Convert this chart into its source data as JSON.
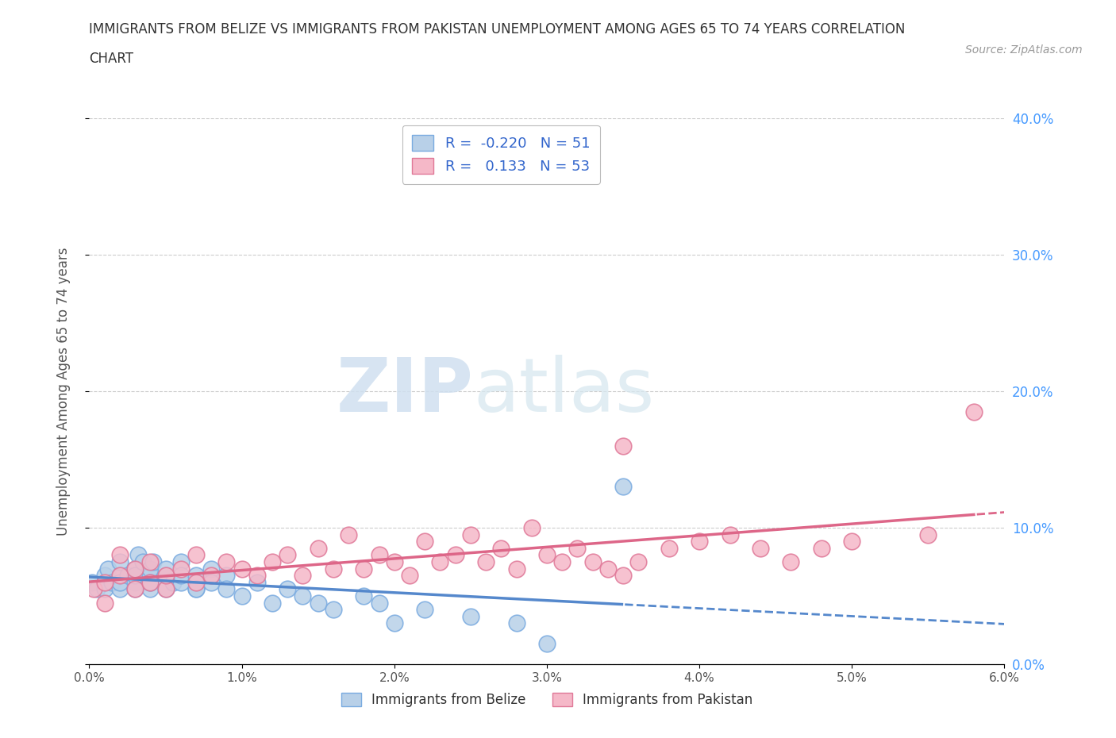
{
  "title_line1": "IMMIGRANTS FROM BELIZE VS IMMIGRANTS FROM PAKISTAN UNEMPLOYMENT AMONG AGES 65 TO 74 YEARS CORRELATION",
  "title_line2": "CHART",
  "source_text": "Source: ZipAtlas.com",
  "watermark_zip": "ZIP",
  "watermark_atlas": "atlas",
  "ylabel": "Unemployment Among Ages 65 to 74 years",
  "xlim": [
    0.0,
    0.06
  ],
  "ylim": [
    0.0,
    0.4
  ],
  "xticks": [
    0.0,
    0.01,
    0.02,
    0.03,
    0.04,
    0.05,
    0.06
  ],
  "xtick_labels": [
    "0.0%",
    "1.0%",
    "2.0%",
    "3.0%",
    "4.0%",
    "5.0%",
    "6.0%"
  ],
  "yticks": [
    0.0,
    0.1,
    0.2,
    0.3,
    0.4
  ],
  "ytick_labels": [
    "0.0%",
    "10.0%",
    "20.0%",
    "30.0%",
    "40.0%"
  ],
  "belize_R": -0.22,
  "belize_N": 51,
  "pakistan_R": 0.133,
  "pakistan_N": 53,
  "belize_scatter_color": "#b8d0e8",
  "belize_edge_color": "#7aabe0",
  "pakistan_scatter_color": "#f5b8c8",
  "pakistan_edge_color": "#e07898",
  "belize_line_color": "#5588cc",
  "pakistan_line_color": "#dd6688",
  "grid_color": "#cccccc",
  "background_color": "#ffffff",
  "belize_x": [
    0.0002,
    0.0005,
    0.001,
    0.001,
    0.0012,
    0.0015,
    0.002,
    0.002,
    0.002,
    0.002,
    0.0025,
    0.003,
    0.003,
    0.003,
    0.003,
    0.0032,
    0.0035,
    0.004,
    0.004,
    0.004,
    0.004,
    0.0042,
    0.005,
    0.005,
    0.005,
    0.0055,
    0.006,
    0.006,
    0.006,
    0.007,
    0.007,
    0.007,
    0.008,
    0.008,
    0.009,
    0.009,
    0.01,
    0.011,
    0.012,
    0.013,
    0.014,
    0.015,
    0.016,
    0.018,
    0.019,
    0.02,
    0.022,
    0.025,
    0.028,
    0.03,
    0.035
  ],
  "belize_y": [
    0.06,
    0.055,
    0.065,
    0.055,
    0.07,
    0.06,
    0.065,
    0.055,
    0.075,
    0.06,
    0.065,
    0.06,
    0.07,
    0.055,
    0.065,
    0.08,
    0.075,
    0.065,
    0.055,
    0.07,
    0.06,
    0.075,
    0.065,
    0.055,
    0.07,
    0.06,
    0.075,
    0.06,
    0.065,
    0.055,
    0.065,
    0.055,
    0.07,
    0.06,
    0.065,
    0.055,
    0.05,
    0.06,
    0.045,
    0.055,
    0.05,
    0.045,
    0.04,
    0.05,
    0.045,
    0.03,
    0.04,
    0.035,
    0.03,
    0.015,
    0.13
  ],
  "pakistan_x": [
    0.0003,
    0.001,
    0.001,
    0.002,
    0.002,
    0.003,
    0.003,
    0.004,
    0.004,
    0.005,
    0.005,
    0.006,
    0.007,
    0.007,
    0.008,
    0.009,
    0.01,
    0.011,
    0.012,
    0.013,
    0.014,
    0.015,
    0.016,
    0.017,
    0.018,
    0.019,
    0.02,
    0.021,
    0.022,
    0.023,
    0.024,
    0.025,
    0.026,
    0.027,
    0.028,
    0.029,
    0.03,
    0.031,
    0.032,
    0.033,
    0.034,
    0.035,
    0.035,
    0.036,
    0.038,
    0.04,
    0.042,
    0.044,
    0.046,
    0.048,
    0.05,
    0.055,
    0.058
  ],
  "pakistan_y": [
    0.055,
    0.06,
    0.045,
    0.065,
    0.08,
    0.055,
    0.07,
    0.06,
    0.075,
    0.055,
    0.065,
    0.07,
    0.06,
    0.08,
    0.065,
    0.075,
    0.07,
    0.065,
    0.075,
    0.08,
    0.065,
    0.085,
    0.07,
    0.095,
    0.07,
    0.08,
    0.075,
    0.065,
    0.09,
    0.075,
    0.08,
    0.095,
    0.075,
    0.085,
    0.07,
    0.1,
    0.08,
    0.075,
    0.085,
    0.075,
    0.07,
    0.16,
    0.065,
    0.075,
    0.085,
    0.09,
    0.095,
    0.085,
    0.075,
    0.085,
    0.09,
    0.095,
    0.185
  ]
}
